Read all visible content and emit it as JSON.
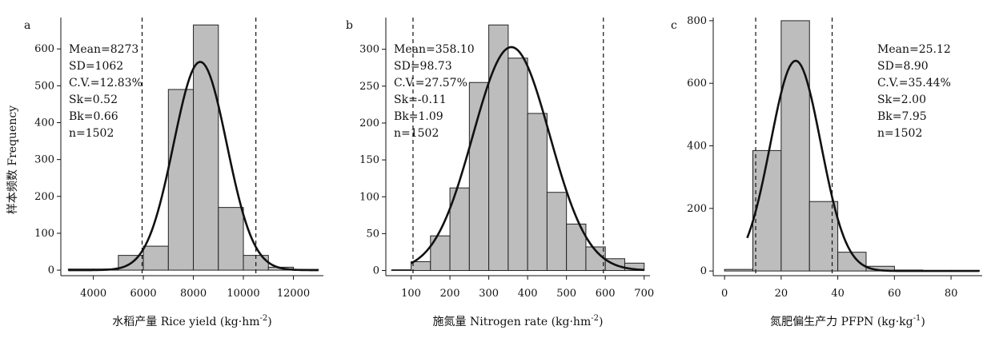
{
  "ylabel": "样本频数 Frequency",
  "chart_data": [
    {
      "type": "bar",
      "letter": "a",
      "xlabel_main": "水稻产量 Rice yield (kg·hm",
      "xlabel_sup": "-2",
      "xlabel_end": ")",
      "xlim": [
        2700,
        13200
      ],
      "ylim": [
        -15,
        685
      ],
      "xticks": [
        4000,
        6000,
        8000,
        10000,
        12000
      ],
      "yticks": [
        0,
        100,
        200,
        300,
        400,
        500,
        600
      ],
      "bins": [
        {
          "x0": 3000,
          "x1": 4000,
          "count": 3
        },
        {
          "x0": 4000,
          "x1": 5000,
          "count": 3
        },
        {
          "x0": 5000,
          "x1": 6000,
          "count": 40
        },
        {
          "x0": 6000,
          "x1": 7000,
          "count": 65
        },
        {
          "x0": 7000,
          "x1": 8000,
          "count": 490
        },
        {
          "x0": 8000,
          "x1": 9000,
          "count": 665
        },
        {
          "x0": 9000,
          "x1": 10000,
          "count": 170
        },
        {
          "x0": 10000,
          "x1": 11000,
          "count": 40
        },
        {
          "x0": 11000,
          "x1": 12000,
          "count": 8
        },
        {
          "x0": 12000,
          "x1": 13000,
          "count": 2
        }
      ],
      "fit": {
        "mean": 8273,
        "sd": 1062,
        "peak": 565,
        "x_from": 3000,
        "x_to": 13000
      },
      "ref_lines": [
        5950,
        10500
      ],
      "stats_pos": "top-left",
      "stats": [
        "Mean=8273",
        "SD=1062",
        "C.V.=12.83%",
        "Sk=0.52",
        "Bk=0.66",
        "n=1502"
      ]
    },
    {
      "type": "bar",
      "letter": "b",
      "xlabel_main": "施氮量 Nitrogen rate (kg·hm",
      "xlabel_sup": "-2",
      "xlabel_end": ")",
      "xlim": [
        35,
        715
      ],
      "ylim": [
        -7,
        343
      ],
      "xticks": [
        100,
        200,
        300,
        400,
        500,
        600,
        700
      ],
      "yticks": [
        0,
        50,
        100,
        150,
        200,
        250,
        300
      ],
      "bins": [
        {
          "x0": 50,
          "x1": 100,
          "count": 1
        },
        {
          "x0": 100,
          "x1": 150,
          "count": 12
        },
        {
          "x0": 150,
          "x1": 200,
          "count": 47
        },
        {
          "x0": 200,
          "x1": 250,
          "count": 112
        },
        {
          "x0": 250,
          "x1": 300,
          "count": 255
        },
        {
          "x0": 300,
          "x1": 350,
          "count": 333
        },
        {
          "x0": 350,
          "x1": 400,
          "count": 288
        },
        {
          "x0": 400,
          "x1": 450,
          "count": 213
        },
        {
          "x0": 450,
          "x1": 500,
          "count": 106
        },
        {
          "x0": 500,
          "x1": 550,
          "count": 63
        },
        {
          "x0": 550,
          "x1": 600,
          "count": 32
        },
        {
          "x0": 600,
          "x1": 650,
          "count": 16
        },
        {
          "x0": 650,
          "x1": 700,
          "count": 10
        }
      ],
      "fit": {
        "mean": 358.1,
        "sd": 98.73,
        "peak": 303,
        "x_from": 100,
        "x_to": 700
      },
      "ref_lines": [
        105,
        595
      ],
      "stats_pos": "top-left",
      "stats": [
        "Mean=358.10",
        "SD=98.73",
        "C.V.=27.57%",
        "Sk=-0.11",
        "Bk=1.09",
        "n=1502"
      ]
    },
    {
      "type": "bar",
      "letter": "c",
      "xlabel_main": "氮肥偏生产力 PFPN (kg·kg",
      "xlabel_sup": "-1",
      "xlabel_end": ")",
      "xlim": [
        -4,
        91
      ],
      "ylim": [
        -15,
        810
      ],
      "xticks": [
        0,
        20,
        40,
        60,
        80
      ],
      "yticks": [
        0,
        200,
        400,
        600,
        800
      ],
      "bins": [
        {
          "x0": 0,
          "x1": 10,
          "count": 5
        },
        {
          "x0": 10,
          "x1": 20,
          "count": 385
        },
        {
          "x0": 20,
          "x1": 30,
          "count": 800
        },
        {
          "x0": 30,
          "x1": 40,
          "count": 222
        },
        {
          "x0": 40,
          "x1": 50,
          "count": 60
        },
        {
          "x0": 50,
          "x1": 60,
          "count": 15
        },
        {
          "x0": 60,
          "x1": 70,
          "count": 3
        },
        {
          "x0": 70,
          "x1": 80,
          "count": 2
        },
        {
          "x0": 80,
          "x1": 90,
          "count": 2
        }
      ],
      "fit": {
        "mean": 25.12,
        "sd": 8.9,
        "peak": 672,
        "x_from": 8,
        "x_to": 90
      },
      "ref_lines": [
        11,
        38
      ],
      "stats_pos": "top-right",
      "stats": [
        "Mean=25.12",
        "SD=8.90",
        "C.V.=35.44%",
        "Sk=2.00",
        "Bk=7.95",
        "n=1502"
      ]
    }
  ]
}
